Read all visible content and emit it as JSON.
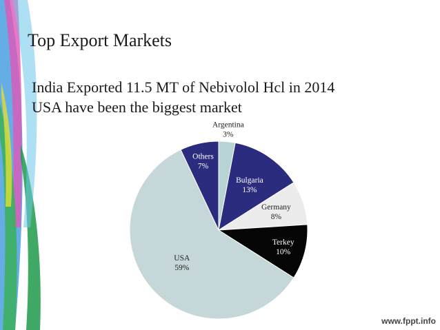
{
  "slide": {
    "title": "Top Export Markets",
    "bullets": [
      "India Exported 11.5 MT of Nebivolol Hcl in 2014",
      "USA have been the biggest market"
    ],
    "watermark": "www.fppt.info"
  },
  "chart_data": {
    "type": "pie",
    "title": "",
    "slices": [
      {
        "label": "Argentina",
        "value": 3,
        "value_label": "3%",
        "color": "#b7d3d3",
        "text_color": "#222222"
      },
      {
        "label": "Bulgaria",
        "value": 13,
        "value_label": "13%",
        "color": "#2c2c7f",
        "text_color": "#ffffff"
      },
      {
        "label": "Germany",
        "value": 8,
        "value_label": "8%",
        "color": "#ececec",
        "text_color": "#222222"
      },
      {
        "label": "Terkey",
        "value": 10,
        "value_label": "10%",
        "color": "#050505",
        "text_color": "#ffffff"
      },
      {
        "label": "USA",
        "value": 59,
        "value_label": "59%",
        "color": "#c5d7d8",
        "text_color": "#222222"
      },
      {
        "label": "Others",
        "value": 7,
        "value_label": "7%",
        "color": "#2c2c7f",
        "text_color": "#ffffff"
      }
    ],
    "start_angle_deg": 0,
    "direction": "clockwise",
    "legend": "none",
    "labels": "on-slice"
  }
}
